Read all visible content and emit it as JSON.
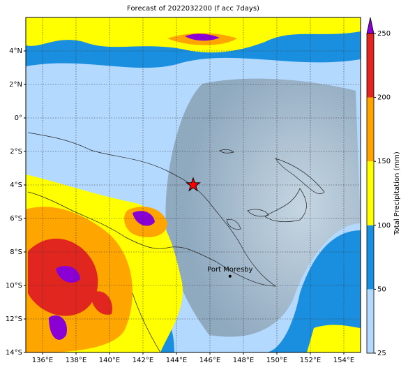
{
  "map": {
    "title": "Forecast of 2022032200 (f acc 7days)",
    "lonlim": [
      135,
      155
    ],
    "latlim": [
      -14,
      6
    ],
    "xticks": [
      {
        "value": 136,
        "label": "136°E"
      },
      {
        "value": 138,
        "label": "138°E"
      },
      {
        "value": 140,
        "label": "140°E"
      },
      {
        "value": 142,
        "label": "142°E"
      },
      {
        "value": 144,
        "label": "144°E"
      },
      {
        "value": 146,
        "label": "146°E"
      },
      {
        "value": 148,
        "label": "148°E"
      },
      {
        "value": 150,
        "label": "150°E"
      },
      {
        "value": 152,
        "label": "152°E"
      },
      {
        "value": 154,
        "label": "154°E"
      }
    ],
    "yticks": [
      {
        "value": 4,
        "label": "4°N"
      },
      {
        "value": 2,
        "label": "2°N"
      },
      {
        "value": 0,
        "label": "0°"
      },
      {
        "value": -2,
        "label": "2°S"
      },
      {
        "value": -4,
        "label": "4°S"
      },
      {
        "value": -6,
        "label": "6°S"
      },
      {
        "value": -8,
        "label": "8°S"
      },
      {
        "value": -10,
        "label": "10°S"
      },
      {
        "value": -12,
        "label": "12°S"
      },
      {
        "value": -14,
        "label": "14°S"
      }
    ],
    "grid": true,
    "city": {
      "name": "Port Moresby",
      "lon": 147.2,
      "lat": -9.45
    },
    "star": {
      "lon": 145.0,
      "lat": -4.0,
      "color": "#ff0000"
    },
    "colorbar": {
      "label": "Total Precipitation (mm)",
      "ticks": [
        25,
        50,
        100,
        150,
        200,
        250
      ],
      "colors": [
        "#b3d9ff",
        "#1a8fdf",
        "#ffff00",
        "#ffa500",
        "#e0261f"
      ],
      "over_color": "#8a00d4"
    }
  }
}
